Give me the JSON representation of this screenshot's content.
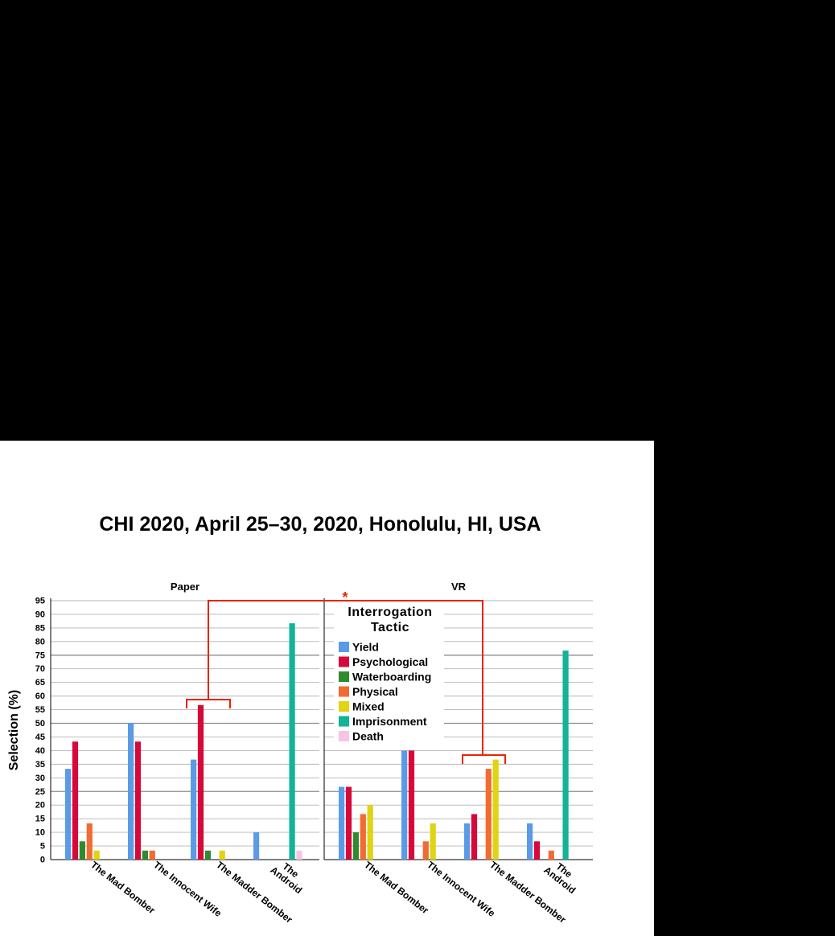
{
  "header": {
    "text": "CHI 2020, April 25–30, 2020, Honolulu, HI, USA"
  },
  "chart_data": {
    "type": "bar",
    "ylabel": "Selection (%)",
    "ylim": [
      0,
      95
    ],
    "yticks": [
      0,
      5,
      10,
      15,
      20,
      25,
      30,
      35,
      40,
      45,
      50,
      55,
      60,
      65,
      70,
      75,
      80,
      85,
      90,
      95
    ],
    "grid": true,
    "categories": [
      "The Mad Bomber",
      "The Innocent Wife",
      "The Madder Bomber",
      "The Android"
    ],
    "legend": {
      "title": "Interrogation Tactic",
      "placement": "top-left of VR panel"
    },
    "series_names": [
      "Yield",
      "Psychological",
      "Waterboarding",
      "Physical",
      "Mixed",
      "Imprisonment",
      "Death"
    ],
    "colors": [
      "#5b9be6",
      "#d7083a",
      "#2e8b2e",
      "#f26b33",
      "#e0d413",
      "#12b396",
      "#f7c4e3"
    ],
    "panels": [
      {
        "title": "Paper",
        "values": [
          [
            33.3,
            43.3,
            6.7,
            13.3,
            3.3,
            0,
            0
          ],
          [
            50,
            43.3,
            3.3,
            3.3,
            0,
            0,
            0
          ],
          [
            36.7,
            56.7,
            3.3,
            0,
            3.3,
            0,
            0
          ],
          [
            10,
            0,
            0,
            0,
            0,
            86.7,
            3.3
          ]
        ]
      },
      {
        "title": "VR",
        "values": [
          [
            26.7,
            26.7,
            10,
            16.7,
            20,
            0,
            0
          ],
          [
            40,
            40,
            0,
            6.7,
            13.3,
            0,
            0
          ],
          [
            13.3,
            16.7,
            0,
            33.3,
            36.7,
            0,
            0
          ],
          [
            13.3,
            6.7,
            0,
            3.3,
            0,
            76.7,
            0
          ]
        ]
      }
    ],
    "annotation": {
      "text": "*",
      "color": "#ee2200"
    }
  }
}
